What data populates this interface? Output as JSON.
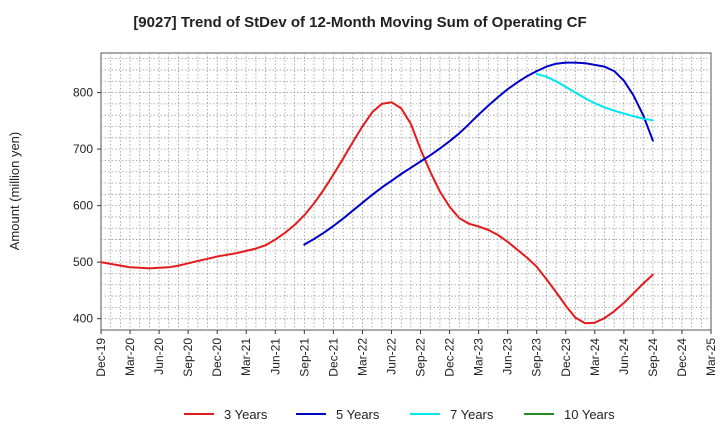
{
  "chart_data": {
    "type": "line",
    "title": "[9027]  Trend of StDev of 12-Month Moving Sum of Operating CF",
    "xlabel": "",
    "ylabel": "Amount (million yen)",
    "ylim": [
      380,
      870
    ],
    "yticks": [
      400,
      500,
      600,
      700,
      800
    ],
    "x_tick_labels": [
      "Dec-19",
      "Mar-20",
      "Jun-20",
      "Sep-20",
      "Dec-20",
      "Mar-21",
      "Jun-21",
      "Sep-21",
      "Dec-21",
      "Mar-22",
      "Jun-22",
      "Sep-22",
      "Dec-22",
      "Mar-23",
      "Jun-23",
      "Sep-23",
      "Dec-23",
      "Mar-24",
      "Jun-24",
      "Sep-24",
      "Dec-24",
      "Mar-25"
    ],
    "grid": true,
    "legend_placement": "bottom",
    "series": [
      {
        "name": "3 Years",
        "color": "#e41a1c",
        "x": [
          "Dec-19",
          "Jan-20",
          "Feb-20",
          "Mar-20",
          "Apr-20",
          "May-20",
          "Jun-20",
          "Jul-20",
          "Aug-20",
          "Sep-20",
          "Oct-20",
          "Nov-20",
          "Dec-20",
          "Jan-21",
          "Feb-21",
          "Mar-21",
          "Apr-21",
          "May-21",
          "Jun-21",
          "Jul-21",
          "Aug-21",
          "Sep-21",
          "Oct-21",
          "Nov-21",
          "Dec-21",
          "Jan-22",
          "Feb-22",
          "Mar-22",
          "Apr-22",
          "May-22",
          "Jun-22",
          "Jul-22",
          "Aug-22",
          "Sep-22",
          "Oct-22",
          "Nov-22",
          "Dec-22",
          "Jan-23",
          "Feb-23",
          "Mar-23",
          "Apr-23",
          "May-23",
          "Jun-23",
          "Jul-23",
          "Aug-23",
          "Sep-23",
          "Oct-23",
          "Nov-23",
          "Dec-23",
          "Jan-24",
          "Feb-24",
          "Mar-24",
          "Apr-24",
          "May-24",
          "Jun-24",
          "Jul-24",
          "Aug-24",
          "Sep-24"
        ],
        "values": [
          500,
          497,
          494,
          491,
          490,
          489,
          490,
          491,
          494,
          498,
          502,
          506,
          510,
          513,
          516,
          520,
          524,
          530,
          540,
          552,
          566,
          583,
          604,
          628,
          655,
          683,
          712,
          740,
          765,
          780,
          783,
          772,
          745,
          700,
          660,
          625,
          598,
          578,
          568,
          563,
          557,
          548,
          536,
          522,
          508,
          492,
          470,
          447,
          423,
          402,
          392,
          393,
          401,
          413,
          428,
          445,
          462,
          478
        ]
      },
      {
        "name": "5 Years",
        "color": "#0000cc",
        "x": [
          "Sep-21",
          "Oct-21",
          "Nov-21",
          "Dec-21",
          "Jan-22",
          "Feb-22",
          "Mar-22",
          "Apr-22",
          "May-22",
          "Jun-22",
          "Jul-22",
          "Aug-22",
          "Sep-22",
          "Oct-22",
          "Nov-22",
          "Dec-22",
          "Jan-23",
          "Feb-23",
          "Mar-23",
          "Apr-23",
          "May-23",
          "Jun-23",
          "Jul-23",
          "Aug-23",
          "Sep-23",
          "Oct-23",
          "Nov-23",
          "Dec-23",
          "Jan-24",
          "Feb-24",
          "Mar-24",
          "Apr-24",
          "May-24",
          "Jun-24",
          "Jul-24",
          "Aug-24",
          "Sep-24"
        ],
        "values": [
          531,
          541,
          552,
          564,
          577,
          591,
          605,
          619,
          632,
          644,
          656,
          667,
          678,
          689,
          701,
          714,
          728,
          744,
          761,
          777,
          792,
          806,
          818,
          829,
          838,
          846,
          851,
          853,
          853,
          852,
          849,
          846,
          838,
          821,
          795,
          760,
          715
        ]
      },
      {
        "name": "7 Years",
        "color": "#00e5ee",
        "x": [
          "Sep-23",
          "Oct-23",
          "Nov-23",
          "Dec-23",
          "Jan-24",
          "Feb-24",
          "Mar-24",
          "Apr-24",
          "May-24",
          "Jun-24",
          "Jul-24",
          "Aug-24",
          "Sep-24"
        ],
        "values": [
          833,
          828,
          820,
          810,
          800,
          790,
          781,
          774,
          768,
          763,
          758,
          754,
          751
        ]
      },
      {
        "name": "10 Years",
        "color": "#228b22",
        "x": [],
        "values": []
      }
    ]
  }
}
